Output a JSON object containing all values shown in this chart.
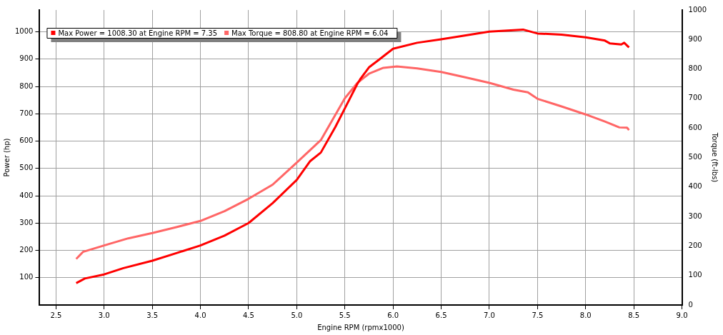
{
  "chart_data": {
    "type": "line",
    "xlabel": "Engine RPM (rpmx1000)",
    "ylabel": "Power (hp)",
    "y2label": "Torque (ft-lbs)",
    "xlim": [
      2.33,
      9.0
    ],
    "xticks": [
      {
        "value": 2.5,
        "label": "2.5"
      },
      {
        "value": 3,
        "label": "3.0"
      },
      {
        "value": 3.5,
        "label": "3.5"
      },
      {
        "value": 4,
        "label": "4.0"
      },
      {
        "value": 4.5,
        "label": "4.5"
      },
      {
        "value": 5,
        "label": "5.0"
      },
      {
        "value": 5.5,
        "label": "5.5"
      },
      {
        "value": 6,
        "label": "6.0"
      },
      {
        "value": 6.5,
        "label": "6.5"
      },
      {
        "value": 7,
        "label": "7.0"
      },
      {
        "value": 7.5,
        "label": "7.5"
      },
      {
        "value": 8,
        "label": "8.0"
      },
      {
        "value": 8.5,
        "label": "8.5"
      },
      {
        "value": 9,
        "label": "9.0"
      }
    ],
    "ylim": [
      0,
      1080
    ],
    "yticks": [
      100,
      200,
      300,
      400,
      500,
      600,
      700,
      800,
      900,
      1000
    ],
    "y2lim": [
      0,
      1000
    ],
    "y2ticks": [
      0,
      100,
      200,
      300,
      400,
      500,
      600,
      700,
      800,
      900,
      1000
    ],
    "grid": true,
    "legend": "top left",
    "marker": "none",
    "line_style": "solid",
    "series": [
      {
        "name": "Max Power = 1008.30 at Engine RPM = 7.35",
        "color": "#ff0000",
        "x": [
          2.71,
          2.8,
          3.0,
          3.2,
          3.5,
          3.75,
          4.0,
          4.25,
          4.5,
          4.75,
          5.0,
          5.14,
          5.25,
          5.4,
          5.5,
          5.63,
          5.66,
          5.75,
          5.85,
          6.0,
          6.25,
          6.5,
          7.0,
          7.35,
          7.5,
          7.75,
          8.0,
          8.2,
          8.25,
          8.37,
          8.4,
          8.45
        ],
        "values": [
          80,
          97,
          112,
          135,
          162,
          190,
          218,
          254,
          300,
          373,
          458,
          527,
          558,
          651,
          720,
          810,
          827,
          870,
          897,
          938,
          960,
          973,
          1001,
          1008.3,
          994,
          990,
          980,
          968,
          958,
          954,
          960,
          943
        ]
      },
      {
        "name": "Max Torque = 808.80 at Engine RPM = 6.04",
        "color": "#ff6666",
        "axis": "y2",
        "x": [
          2.71,
          2.78,
          3.0,
          3.25,
          3.5,
          3.75,
          4.0,
          4.25,
          4.5,
          4.75,
          5.0,
          5.25,
          5.5,
          5.63,
          5.75,
          5.9,
          6.04,
          6.25,
          6.5,
          6.75,
          7.0,
          7.25,
          7.4,
          7.5,
          7.75,
          8.0,
          8.2,
          8.35,
          8.43,
          8.45
        ],
        "values": [
          156,
          180,
          202,
          226,
          244,
          264,
          285,
          318,
          360,
          408,
          483,
          559,
          701,
          753,
          784,
          804,
          808.8,
          802,
          790,
          772,
          753,
          730,
          721,
          699,
          673,
          646,
          622,
          602,
          601,
          593
        ]
      }
    ]
  }
}
